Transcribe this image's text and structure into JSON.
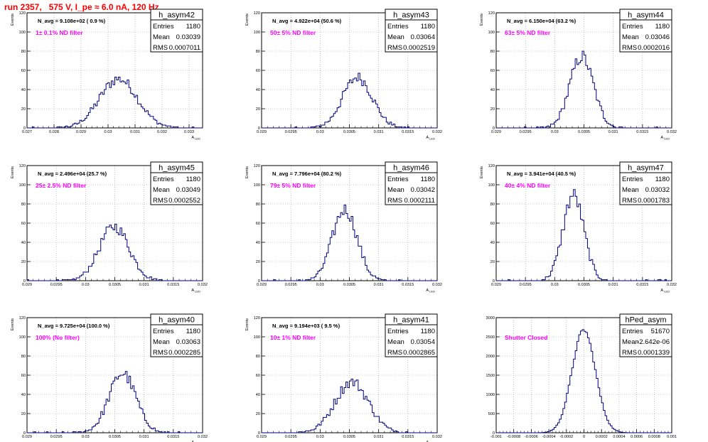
{
  "title": "run 2357,   575 V, I_pe ≈ 6.0 nA, 120 Hz",
  "colors": {
    "hist": "#000080",
    "annotation": "#ff00ff",
    "title": "#ff0000",
    "grid": "#9a9a9a"
  },
  "labels": {
    "stats_entries": "Entries",
    "stats_mean": "Mean",
    "stats_rms": "RMS"
  },
  "chart_data": [
    {
      "type": "histogram",
      "title": "h_asym42",
      "ylabel": "Events",
      "xlabel": "A_LED",
      "xlim": [
        0.027,
        0.0335
      ],
      "ylim": [
        0,
        120
      ],
      "xticks": [
        0.027,
        0.028,
        0.029,
        0.03,
        0.031,
        0.032,
        0.033
      ],
      "xtick_labels": [
        "0.027",
        "0.028",
        "0.029",
        "0.03",
        "0.031",
        "0.032",
        "0.033"
      ],
      "yticks": [
        0,
        20,
        40,
        60,
        80,
        100,
        120
      ],
      "navg": "N_avg = 9.108e+02 ( 0.9 %)",
      "annotation": "1± 0.1% ND filter",
      "stats": {
        "entries": "1180",
        "mean": "0.03039",
        "rms": "0.0007011"
      },
      "mean": 0.03039,
      "rms": 0.0007011,
      "peak": 55
    },
    {
      "type": "histogram",
      "title": "h_asym43",
      "ylabel": "Events",
      "xlabel": "A_LED",
      "xlim": [
        0.029,
        0.032
      ],
      "ylim": [
        0,
        120
      ],
      "xticks": [
        0.029,
        0.0295,
        0.03,
        0.0305,
        0.031,
        0.0315,
        0.032
      ],
      "xtick_labels": [
        "0.029",
        "0.0295",
        "0.03",
        "0.0305",
        "0.031",
        "0.0315",
        "0.032"
      ],
      "yticks": [
        0,
        20,
        40,
        60,
        80,
        100,
        120
      ],
      "navg": "N_avg = 4.922e+04 (50.6 %)",
      "annotation": "50± 5% ND filter",
      "stats": {
        "entries": "1180",
        "mean": "0.03064",
        "rms": "0.0002519"
      },
      "mean": 0.03064,
      "rms": 0.0002519,
      "peak": 57
    },
    {
      "type": "histogram",
      "title": "h_asym44",
      "ylabel": "Events",
      "xlabel": "A_LED",
      "xlim": [
        0.029,
        0.032
      ],
      "ylim": [
        0,
        120
      ],
      "xticks": [
        0.029,
        0.0295,
        0.03,
        0.0305,
        0.031,
        0.0315,
        0.032
      ],
      "xtick_labels": [
        "0.029",
        "0.0295",
        "0.03",
        "0.0305",
        "0.031",
        "0.0315",
        "0.032"
      ],
      "yticks": [
        0,
        20,
        40,
        60,
        80,
        100,
        120
      ],
      "navg": "N_avg = 6.150e+04 (63.2 %)",
      "annotation": "63± 5% ND filter",
      "stats": {
        "entries": "1180",
        "mean": "0.03046",
        "rms": "0.0002016"
      },
      "mean": 0.03046,
      "rms": 0.0002016,
      "peak": 80
    },
    {
      "type": "histogram",
      "title": "h_asym45",
      "ylabel": "Events",
      "xlabel": "A_LED",
      "xlim": [
        0.029,
        0.032
      ],
      "ylim": [
        0,
        120
      ],
      "xticks": [
        0.029,
        0.0295,
        0.03,
        0.0305,
        0.031,
        0.0315,
        0.032
      ],
      "xtick_labels": [
        "0.029",
        "0.0295",
        "0.03",
        "0.0305",
        "0.031",
        "0.0315",
        "0.032"
      ],
      "yticks": [
        0,
        20,
        40,
        60,
        80,
        100,
        120
      ],
      "navg": "N_avg = 2.496e+04 (25.7 %)",
      "annotation": "25± 2.5% ND filter",
      "stats": {
        "entries": "1180",
        "mean": "0.03049",
        "rms": "0.0002552"
      },
      "mean": 0.03049,
      "rms": 0.0002552,
      "peak": 61
    },
    {
      "type": "histogram",
      "title": "h_asym46",
      "ylabel": "Events",
      "xlabel": "A_LED",
      "xlim": [
        0.029,
        0.032
      ],
      "ylim": [
        0,
        120
      ],
      "xticks": [
        0.029,
        0.0295,
        0.03,
        0.0305,
        0.031,
        0.0315,
        0.032
      ],
      "xtick_labels": [
        "0.029",
        "0.0295",
        "0.03",
        "0.0305",
        "0.031",
        "0.0315",
        "0.032"
      ],
      "yticks": [
        0,
        20,
        40,
        60,
        80,
        100,
        120
      ],
      "navg": "N_avg = 7.796e+04 (80.2 %)",
      "annotation": "79± 5% ND filter",
      "stats": {
        "entries": "1180",
        "mean": "0.03042",
        "rms": "0.0002111"
      },
      "mean": 0.03042,
      "rms": 0.0002111,
      "peak": 80
    },
    {
      "type": "histogram",
      "title": "h_asym47",
      "ylabel": "Events",
      "xlabel": "A_LED",
      "xlim": [
        0.029,
        0.032
      ],
      "ylim": [
        0,
        120
      ],
      "xticks": [
        0.029,
        0.0295,
        0.03,
        0.0305,
        0.031,
        0.0315,
        0.032
      ],
      "xtick_labels": [
        "0.029",
        "0.0295",
        "0.03",
        "0.0305",
        "0.031",
        "0.0315",
        "0.032"
      ],
      "yticks": [
        0,
        20,
        40,
        60,
        80,
        100,
        120
      ],
      "navg": "N_avg = 3.941e+04 (40.5 %)",
      "annotation": "40± 4% ND filter",
      "stats": {
        "entries": "1180",
        "mean": "0.03032",
        "rms": "0.0001783"
      },
      "mean": 0.03032,
      "rms": 0.0001783,
      "peak": 96
    },
    {
      "type": "histogram",
      "title": "h_asym40",
      "ylabel": "Events",
      "xlabel": "A_LED",
      "xlim": [
        0.029,
        0.032
      ],
      "ylim": [
        0,
        120
      ],
      "xticks": [
        0.029,
        0.0295,
        0.03,
        0.0305,
        0.031,
        0.0315,
        0.032
      ],
      "xtick_labels": [
        "0.029",
        "0.0295",
        "0.03",
        "0.0305",
        "0.031",
        "0.0315",
        "0.032"
      ],
      "yticks": [
        0,
        20,
        40,
        60,
        80,
        100,
        120
      ],
      "navg": "N_avg = 9.725e+04 (100.0 %)",
      "annotation": "100% (No filter)",
      "stats": {
        "entries": "1180",
        "mean": "0.03063",
        "rms": "0.0002285"
      },
      "mean": 0.03063,
      "rms": 0.0002285,
      "peak": 67
    },
    {
      "type": "histogram",
      "title": "h_asym41",
      "ylabel": "Events",
      "xlabel": "A_LED",
      "xlim": [
        0.029,
        0.032
      ],
      "ylim": [
        0,
        120
      ],
      "xticks": [
        0.029,
        0.0295,
        0.03,
        0.0305,
        0.031,
        0.0315,
        0.032
      ],
      "xtick_labels": [
        "0.029",
        "0.0295",
        "0.03",
        "0.0305",
        "0.031",
        "0.0315",
        "0.032"
      ],
      "yticks": [
        0,
        20,
        40,
        60,
        80,
        100,
        120
      ],
      "navg": "N_avg = 9.194e+03 ( 9.5 %)",
      "annotation": "10± 1% ND filter",
      "stats": {
        "entries": "1180",
        "mean": "0.03054",
        "rms": "0.0002865"
      },
      "mean": 0.03054,
      "rms": 0.0002865,
      "peak": 57
    },
    {
      "type": "histogram",
      "title": "hPed_asym",
      "ylabel": "",
      "xlabel": "",
      "xlim": [
        -0.001,
        0.001
      ],
      "ylim": [
        0,
        3000
      ],
      "xticks": [
        -0.001,
        -0.0008,
        -0.0006,
        -0.0004,
        -0.0002,
        0,
        0.0002,
        0.0004,
        0.0006,
        0.0008,
        0.001
      ],
      "xtick_labels": [
        "-0.001",
        "-0.0008",
        "-0.0006",
        "-0.0004",
        "-0.0002",
        "0",
        "0.0002",
        "0.0004",
        "0.0006",
        "0.0008",
        "0.001"
      ],
      "yticks": [
        0,
        500,
        1000,
        1500,
        2000,
        2500,
        3000
      ],
      "navg": "",
      "annotation": "Shutter Closed",
      "stats": {
        "entries": "51670",
        "mean": "-2.642e-06",
        "rms": "0.0001339"
      },
      "mean": -2.642e-06,
      "rms": 0.0001339,
      "peak": 2880
    }
  ]
}
